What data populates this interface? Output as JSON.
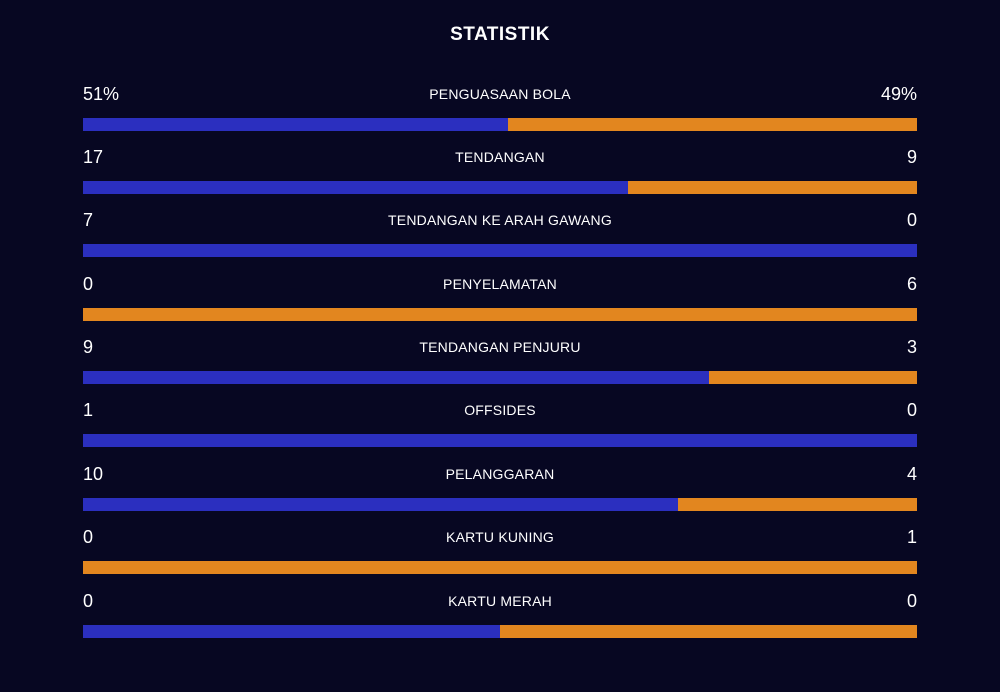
{
  "title": "STATISTIK",
  "colors": {
    "background": "#070722",
    "home": "#2b2fbf",
    "away": "#e2861f",
    "text": "#ffffff"
  },
  "stats": [
    {
      "label": "PENGUASAAN BOLA",
      "home": "51%",
      "away": "49%",
      "home_share": 0.51
    },
    {
      "label": "TENDANGAN",
      "home": "17",
      "away": "9",
      "home_share": 0.654
    },
    {
      "label": "TENDANGAN KE ARAH GAWANG",
      "home": "7",
      "away": "0",
      "home_share": 1.0
    },
    {
      "label": "PENYELAMATAN",
      "home": "0",
      "away": "6",
      "home_share": 0.0
    },
    {
      "label": "TENDANGAN PENJURU",
      "home": "9",
      "away": "3",
      "home_share": 0.75
    },
    {
      "label": "OFFSIDES",
      "home": "1",
      "away": "0",
      "home_share": 1.0
    },
    {
      "label": "PELANGGARAN",
      "home": "10",
      "away": "4",
      "home_share": 0.714
    },
    {
      "label": "KARTU KUNING",
      "home": "0",
      "away": "1",
      "home_share": 0.0
    },
    {
      "label": "KARTU MERAH",
      "home": "0",
      "away": "0",
      "home_share": 0.5
    }
  ]
}
